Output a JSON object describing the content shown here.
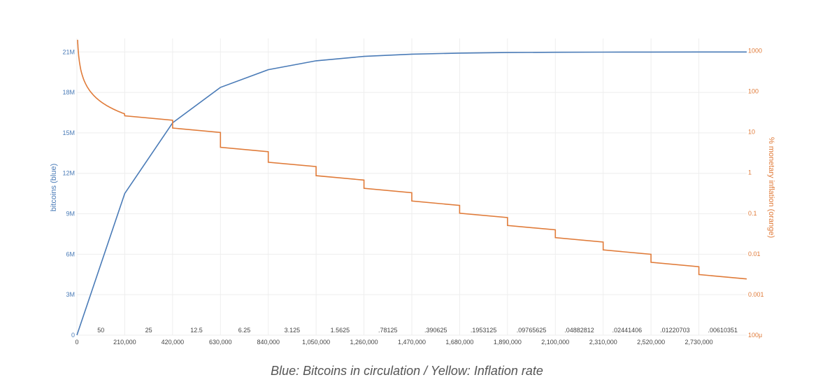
{
  "caption": "Blue: Bitcoins in circulation / Yellow: Inflation rate",
  "colors": {
    "supply": "#4a7bb7",
    "inflation": "#e07b39",
    "grid": "#eeeeee"
  },
  "chart_data": {
    "type": "line",
    "x_ticks": [
      "0",
      "210,000",
      "420,000",
      "630,000",
      "840,000",
      "1,050,000",
      "1,260,000",
      "1,470,000",
      "1,680,000",
      "1,890,000",
      "2,100,000",
      "2,310,000",
      "2,520,000",
      "2,730,000"
    ],
    "xlim": [
      0,
      2940000
    ],
    "y_left": {
      "label": "bitcoins (blue)",
      "ticks": [
        "0",
        "3M",
        "6M",
        "9M",
        "12M",
        "15M",
        "18M",
        "21M"
      ],
      "ylim": [
        0,
        22000000
      ]
    },
    "y_right": {
      "label": "% monetary inflation (orange)",
      "scale": "log",
      "ticks": [
        "100μ",
        "0.001",
        "0.01",
        "0.1",
        "1",
        "10",
        "100",
        "1000"
      ],
      "ylim": [
        0.0001,
        2000
      ]
    },
    "block_rewards": [
      "50",
      "25",
      "12.5",
      "6.25",
      "3.125",
      "1.5625",
      ".78125",
      ".390625",
      ".1953125",
      ".09765625",
      ".04882812",
      ".02441406",
      ".01220703",
      ".00610351"
    ],
    "series": [
      {
        "name": "bitcoins (blue)",
        "axis": "left",
        "x": [
          0,
          210000,
          420000,
          630000,
          840000,
          1050000,
          1260000,
          1470000,
          1680000,
          1890000,
          2100000,
          2310000,
          2520000,
          2730000,
          2940000
        ],
        "y": [
          0,
          10500000,
          15750000,
          18375000,
          19687500,
          20343750,
          20671875,
          20835937,
          20917968,
          20958984,
          20979492,
          20989746,
          20994873,
          20997436,
          20998718
        ]
      },
      {
        "name": "% monetary inflation (orange)",
        "axis": "right",
        "x": [
          210000,
          420000,
          630000,
          840000,
          1050000,
          1260000,
          1470000,
          1680000,
          1890000,
          2100000,
          2310000,
          2520000,
          2730000,
          2940000
        ],
        "y": [
          25,
          12.5,
          4.2,
          1.8,
          0.84,
          0.41,
          0.2,
          0.1,
          0.05,
          0.025,
          0.0125,
          0.0062,
          0.0031,
          0.0016
        ]
      }
    ]
  }
}
